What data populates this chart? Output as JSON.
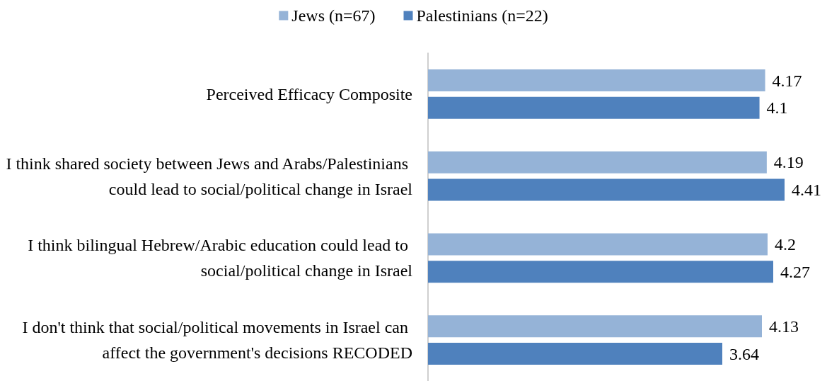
{
  "chart_data": {
    "type": "bar",
    "orientation": "horizontal",
    "categories": [
      "Perceived Efficacy Composite",
      "I think shared society between Jews and Arabs/Palestinians could lead to social/political change in Israel",
      "I think bilingual Hebrew/Arabic education could lead to social/political change in Israel",
      "I don't think that social/political movements in Israel can affect the government's decisions RECODED"
    ],
    "series": [
      {
        "name": "Jews (n=67)",
        "color": "#95b3d7",
        "values": [
          4.17,
          4.19,
          4.2,
          4.13
        ]
      },
      {
        "name": "Palestinians (n=22)",
        "color": "#4f81bd",
        "values": [
          4.1,
          4.41,
          4.27,
          3.64
        ]
      }
    ],
    "tick_labels": "y",
    "data_labels": true,
    "legend": "top",
    "grid": false
  }
}
